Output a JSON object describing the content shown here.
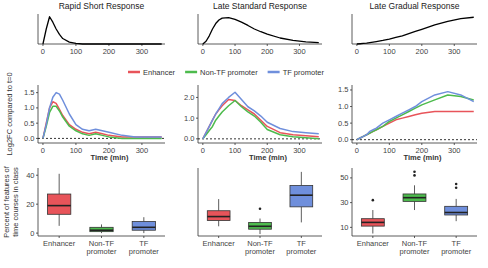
{
  "chart_data": [
    {
      "type": "line",
      "title": "Rapid Short Response",
      "x": [
        0,
        10,
        20,
        30,
        40,
        50,
        60,
        80,
        100,
        120,
        140,
        160,
        180,
        200,
        240,
        280,
        320,
        360
      ],
      "xlim": [
        -15,
        370
      ],
      "xticks": [
        0,
        100,
        200,
        300
      ],
      "ylim": [
        0,
        1.1
      ],
      "tick_labels": "x",
      "series": [
        {
          "name": "Rapid Short Response",
          "color": "#000000",
          "values": [
            0,
            0.55,
            1.0,
            0.8,
            0.55,
            0.35,
            0.2,
            0.07,
            0.02,
            0,
            0,
            0,
            0,
            0,
            0,
            0,
            0,
            0
          ]
        }
      ]
    },
    {
      "type": "line",
      "title": "Late Standard Response",
      "x": [
        0,
        10,
        20,
        30,
        40,
        50,
        60,
        80,
        100,
        120,
        140,
        160,
        180,
        200,
        240,
        280,
        320,
        360
      ],
      "xlim": [
        -15,
        370
      ],
      "xticks": [
        0,
        100,
        200,
        300
      ],
      "ylim": [
        0,
        1.1
      ],
      "tick_labels": "x",
      "series": [
        {
          "name": "Late Standard Response",
          "color": "#000000",
          "values": [
            0,
            0.1,
            0.3,
            0.55,
            0.75,
            0.88,
            0.95,
            0.97,
            0.9,
            0.8,
            0.68,
            0.55,
            0.45,
            0.36,
            0.22,
            0.13,
            0.08,
            0.05
          ]
        }
      ]
    },
    {
      "type": "line",
      "title": "Late Gradual Response",
      "x": [
        0,
        10,
        20,
        30,
        40,
        50,
        60,
        80,
        100,
        120,
        140,
        160,
        180,
        200,
        240,
        280,
        320,
        360
      ],
      "xlim": [
        -15,
        370
      ],
      "xticks": [
        0,
        100,
        200,
        300
      ],
      "ylim": [
        0,
        1.1
      ],
      "tick_labels": "x",
      "series": [
        {
          "name": "Late Gradual Response",
          "color": "#000000",
          "values": [
            0,
            0.01,
            0.02,
            0.03,
            0.05,
            0.07,
            0.09,
            0.13,
            0.18,
            0.24,
            0.3,
            0.38,
            0.46,
            0.54,
            0.7,
            0.83,
            0.93,
            0.98
          ]
        }
      ]
    },
    {
      "type": "line",
      "y_label": "Log2FC compared to t=0",
      "x_label": "Time (min)",
      "legend": "top",
      "reference_line": 0,
      "x": [
        0,
        10,
        20,
        30,
        40,
        50,
        60,
        80,
        100,
        120,
        140,
        160,
        180,
        200,
        240,
        280,
        320,
        360
      ],
      "xlim": [
        -15,
        370
      ],
      "xticks": [
        0,
        100,
        200,
        300
      ],
      "ylim": [
        -0.15,
        1.75
      ],
      "yticks": [
        {
          "value": 0,
          "label": "0.0"
        },
        {
          "value": 0.5,
          "label": "0.5"
        },
        {
          "value": 1,
          "label": "1.0"
        },
        {
          "value": 1.5,
          "label": "1.5"
        }
      ],
      "series": [
        {
          "name": "Enhancer",
          "color": "#e8545a",
          "values": [
            0,
            0.5,
            1.0,
            1.2,
            1.15,
            0.95,
            0.75,
            0.45,
            0.3,
            0.2,
            0.15,
            0.2,
            0.15,
            0.1,
            0.05,
            0.05,
            0.05,
            0.05
          ]
        },
        {
          "name": "Non-TF promoter",
          "color": "#4dbb4d",
          "values": [
            0,
            0.4,
            0.85,
            1.05,
            1.05,
            0.9,
            0.7,
            0.4,
            0.25,
            0.15,
            0.1,
            0.15,
            0.1,
            0.05,
            0.0,
            0.0,
            0.0,
            0.0
          ]
        },
        {
          "name": "TF promoter",
          "color": "#6f8fdc",
          "values": [
            0,
            0.45,
            1.0,
            1.35,
            1.5,
            1.45,
            1.25,
            0.8,
            0.45,
            0.3,
            0.25,
            0.3,
            0.25,
            0.2,
            0.1,
            0.05,
            0.05,
            0.05
          ]
        }
      ]
    },
    {
      "type": "line",
      "x_label": "Time (min)",
      "reference_line": 0,
      "x": [
        0,
        10,
        20,
        30,
        40,
        50,
        60,
        80,
        100,
        120,
        140,
        160,
        180,
        200,
        240,
        280,
        320,
        360
      ],
      "xlim": [
        -15,
        370
      ],
      "xticks": [
        0,
        100,
        200,
        300
      ],
      "ylim": [
        -0.2,
        2.6
      ],
      "yticks": [
        {
          "value": 0,
          "label": "0.0"
        },
        {
          "value": 1,
          "label": "1.0"
        },
        {
          "value": 2,
          "label": "2.0"
        }
      ],
      "series": [
        {
          "name": "Enhancer",
          "color": "#e8545a",
          "values": [
            0,
            0.3,
            0.6,
            0.9,
            1.2,
            1.4,
            1.6,
            1.9,
            1.85,
            1.6,
            1.4,
            1.2,
            0.9,
            0.6,
            0.3,
            0.2,
            0.15,
            0.1
          ]
        },
        {
          "name": "Non-TF promoter",
          "color": "#4dbb4d",
          "values": [
            0,
            0.2,
            0.4,
            0.6,
            0.9,
            1.1,
            1.3,
            1.6,
            1.85,
            1.55,
            1.3,
            1.1,
            0.8,
            0.45,
            0.2,
            0.1,
            0.05,
            0.0
          ]
        },
        {
          "name": "TF promoter",
          "color": "#6f8fdc",
          "values": [
            0,
            0.3,
            0.6,
            0.9,
            1.2,
            1.45,
            1.7,
            2.0,
            2.25,
            1.9,
            1.55,
            1.35,
            1.1,
            0.8,
            0.5,
            0.35,
            0.3,
            0.25
          ]
        }
      ]
    },
    {
      "type": "line",
      "x_label": "Time (min)",
      "reference_line": 0,
      "x": [
        0,
        10,
        20,
        30,
        40,
        50,
        60,
        80,
        100,
        120,
        140,
        160,
        180,
        200,
        240,
        280,
        320,
        360
      ],
      "xlim": [
        -15,
        370
      ],
      "xticks": [
        0,
        100,
        200,
        300
      ],
      "ylim": [
        -0.1,
        1.65
      ],
      "yticks": [
        {
          "value": 0,
          "label": "0.0"
        },
        {
          "value": 0.5,
          "label": "0.5"
        },
        {
          "value": 1,
          "label": "1.0"
        },
        {
          "value": 1.5,
          "label": "1.5"
        }
      ],
      "series": [
        {
          "name": "Enhancer",
          "color": "#e8545a",
          "values": [
            0,
            0.05,
            0.1,
            0.15,
            0.2,
            0.25,
            0.3,
            0.4,
            0.5,
            0.6,
            0.65,
            0.7,
            0.75,
            0.8,
            0.85,
            0.85,
            0.85,
            0.85
          ]
        },
        {
          "name": "Non-TF promoter",
          "color": "#4dbb4d",
          "values": [
            0,
            0.05,
            0.1,
            0.15,
            0.2,
            0.25,
            0.3,
            0.4,
            0.55,
            0.65,
            0.75,
            0.85,
            0.95,
            1.05,
            1.2,
            1.35,
            1.3,
            1.2
          ]
        },
        {
          "name": "TF promoter",
          "color": "#6f8fdc",
          "values": [
            0,
            0.05,
            0.1,
            0.15,
            0.25,
            0.3,
            0.35,
            0.5,
            0.6,
            0.7,
            0.8,
            0.9,
            1.0,
            1.15,
            1.35,
            1.45,
            1.35,
            1.15
          ]
        }
      ]
    },
    {
      "type": "box",
      "y_label": "Percent of features of time courses in class",
      "categories": [
        "Enhancer",
        "Non-TF promoter",
        "TF promoter"
      ],
      "colors": [
        "#e8545a",
        "#4dbb4d",
        "#6f8fdc"
      ],
      "ylim": [
        -2,
        45
      ],
      "yticks": [
        0,
        20,
        40
      ],
      "boxes": [
        {
          "min": 5,
          "q1": 13,
          "median": 19,
          "q3": 27,
          "max": 41,
          "outliers": []
        },
        {
          "min": 0,
          "q1": 1,
          "median": 2,
          "q3": 4,
          "max": 6,
          "outliers": []
        },
        {
          "min": 0,
          "q1": 2,
          "median": 4,
          "q3": 8,
          "max": 11,
          "outliers": []
        }
      ]
    },
    {
      "type": "box",
      "categories": [
        "Enhancer",
        "Non-TF promoter",
        "TF promoter"
      ],
      "tick_labels": "x",
      "colors": [
        "#e8545a",
        "#4dbb4d",
        "#6f8fdc"
      ],
      "ylim": [
        0,
        35
      ],
      "yticks": [],
      "boxes": [
        {
          "min": 5,
          "q1": 8,
          "median": 10,
          "q3": 13,
          "max": 19,
          "outliers": []
        },
        {
          "min": 1,
          "q1": 3.5,
          "median": 5,
          "q3": 7,
          "max": 9,
          "outliers": [
            14
          ]
        },
        {
          "min": 7,
          "q1": 15,
          "median": 21,
          "q3": 26,
          "max": 33,
          "outliers": []
        }
      ]
    },
    {
      "type": "box",
      "categories": [
        "Enhancer",
        "Non-TF promoter",
        "TF promoter"
      ],
      "colors": [
        "#e8545a",
        "#4dbb4d",
        "#6f8fdc"
      ],
      "ylim": [
        3,
        58
      ],
      "yticks": [
        10,
        30,
        50
      ],
      "boxes": [
        {
          "min": 5,
          "q1": 11,
          "median": 14,
          "q3": 17,
          "max": 24,
          "outliers": [
            32
          ]
        },
        {
          "min": 24,
          "q1": 31,
          "median": 34,
          "q3": 37,
          "max": 44,
          "outliers": [
            52,
            55
          ]
        },
        {
          "min": 15,
          "q1": 20,
          "median": 22,
          "q3": 27,
          "max": 33,
          "outliers": [
            42,
            45
          ]
        }
      ]
    }
  ]
}
